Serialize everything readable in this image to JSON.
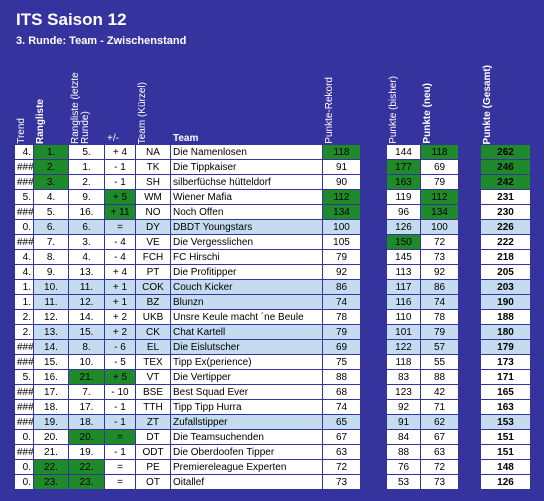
{
  "header": {
    "title": "ITS Saison 12",
    "subtitle": "3. Runde: Team - Zwischenstand"
  },
  "table": {
    "columns": [
      "Trend",
      "Rangliste",
      "Rangliste (letzte Runde)",
      "+/-",
      "Team (Kürzel)",
      "Team",
      "Punkte-Rekord",
      "Punkte (bisher)",
      "Punkte (neu)",
      "Punkte (Gesamt)"
    ],
    "rows": [
      [
        "4.",
        "1.",
        "5.",
        "+ 4",
        "NA",
        "Die Namenlosen",
        "118",
        "144",
        "118",
        "262"
      ],
      [
        "###",
        "2.",
        "1.",
        "- 1",
        "TK",
        "Die Tippkaiser",
        "91",
        "177",
        "69",
        "246"
      ],
      [
        "###",
        "3.",
        "2.",
        "- 1",
        "SH",
        "silberfüchse hütteldorf",
        "90",
        "163",
        "79",
        "242"
      ],
      [
        "5.",
        "4.",
        "9.",
        "+ 5",
        "WM",
        "Wiener Mafia",
        "112",
        "119",
        "112",
        "231"
      ],
      [
        "###",
        "5.",
        "16.",
        "+ 11",
        "NO",
        "Noch Offen",
        "134",
        "96",
        "134",
        "230"
      ],
      [
        "0.",
        "6.",
        "6.",
        "=",
        "DY",
        "DBDT Youngstars",
        "100",
        "126",
        "100",
        "226"
      ],
      [
        "###",
        "7.",
        "3.",
        "- 4",
        "VE",
        "Die Vergesslichen",
        "105",
        "150",
        "72",
        "222"
      ],
      [
        "4.",
        "8.",
        "4.",
        "- 4",
        "FCH",
        "FC Hirschi",
        "79",
        "145",
        "73",
        "218"
      ],
      [
        "4.",
        "9.",
        "13.",
        "+ 4",
        "PT",
        "Die Profitipper",
        "92",
        "113",
        "92",
        "205"
      ],
      [
        "1.",
        "10.",
        "11.",
        "+ 1",
        "COK",
        "Couch Kicker",
        "86",
        "117",
        "86",
        "203"
      ],
      [
        "1.",
        "11.",
        "12.",
        "+ 1",
        "BZ",
        "Blunzn",
        "74",
        "116",
        "74",
        "190"
      ],
      [
        "2.",
        "12.",
        "14.",
        "+ 2",
        "UKB",
        "Unsre Keule macht ´ne Beule",
        "78",
        "110",
        "78",
        "188"
      ],
      [
        "2.",
        "13.",
        "15.",
        "+ 2",
        "CK",
        "Chat Kartell",
        "79",
        "101",
        "79",
        "180"
      ],
      [
        "###",
        "14.",
        "8.",
        "- 6",
        "EL",
        "Die Eislutscher",
        "69",
        "122",
        "57",
        "179"
      ],
      [
        "###",
        "15.",
        "10.",
        "- 5",
        "TEX",
        "Tipp Ex(perience)",
        "75",
        "118",
        "55",
        "173"
      ],
      [
        "5.",
        "16.",
        "21.",
        "+ 5",
        "VT",
        "Die Vertipper",
        "88",
        "83",
        "88",
        "171"
      ],
      [
        "###",
        "17.",
        "7.",
        "- 10",
        "BSE",
        "Best Squad Ever",
        "68",
        "123",
        "42",
        "165"
      ],
      [
        "###",
        "18.",
        "17.",
        "- 1",
        "TTH",
        "Tipp Tipp Hurra",
        "74",
        "92",
        "71",
        "163"
      ],
      [
        "###",
        "19.",
        "18.",
        "- 1",
        "ZT",
        "Zufallstipper",
        "65",
        "91",
        "62",
        "153"
      ],
      [
        "0.",
        "20.",
        "20.",
        "=",
        "DT",
        "Die Teamsuchenden",
        "67",
        "84",
        "67",
        "151"
      ],
      [
        "###",
        "21.",
        "19.",
        "- 1",
        "ODT",
        "Die Oberdoofen Tipper",
        "63",
        "88",
        "63",
        "151"
      ],
      [
        "0.",
        "22.",
        "22.",
        "=",
        "PE",
        "Premiereleague Experten",
        "72",
        "76",
        "72",
        "148"
      ],
      [
        "0.",
        "23.",
        "23.",
        "=",
        "OT",
        "Oitallef",
        "73",
        "53",
        "73",
        "126"
      ]
    ]
  }
}
